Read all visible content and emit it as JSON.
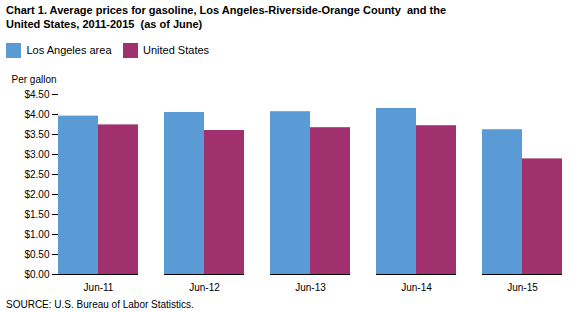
{
  "chart_data": {
    "type": "bar",
    "title": "Chart 1. Average prices for gasoline, Los Angeles-Riverside-Orange County  and the\nUnited States, 2011-2015  (as of June)",
    "ylabel": "Per gallon",
    "source": "SOURCE: U.S. Bureau of Labor Statistics.",
    "categories": [
      "Jun-11",
      "Jun-12",
      "Jun-13",
      "Jun-14",
      "Jun-15"
    ],
    "series": [
      {
        "name": "Los Angeles area",
        "color": "#5B9BD5",
        "values": [
          3.96,
          4.05,
          4.07,
          4.15,
          3.62
        ]
      },
      {
        "name": "United States",
        "color": "#A0306E",
        "values": [
          3.74,
          3.6,
          3.67,
          3.72,
          2.89
        ]
      }
    ],
    "ylim": [
      0,
      4.5
    ],
    "yticks": [
      {
        "value": 0,
        "label": "$0.00"
      },
      {
        "value": 0.5,
        "label": "$0.50"
      },
      {
        "value": 1,
        "label": "$1.00"
      },
      {
        "value": 1.5,
        "label": "$1.50"
      },
      {
        "value": 2,
        "label": "$2.00"
      },
      {
        "value": 2.5,
        "label": "$2.50"
      },
      {
        "value": 3,
        "label": "$3.00"
      },
      {
        "value": 3.5,
        "label": "$3.50"
      },
      {
        "value": 4,
        "label": "$4.00"
      },
      {
        "value": 4.5,
        "label": "$4.50"
      }
    ],
    "grid": false,
    "legend": "upper left"
  }
}
